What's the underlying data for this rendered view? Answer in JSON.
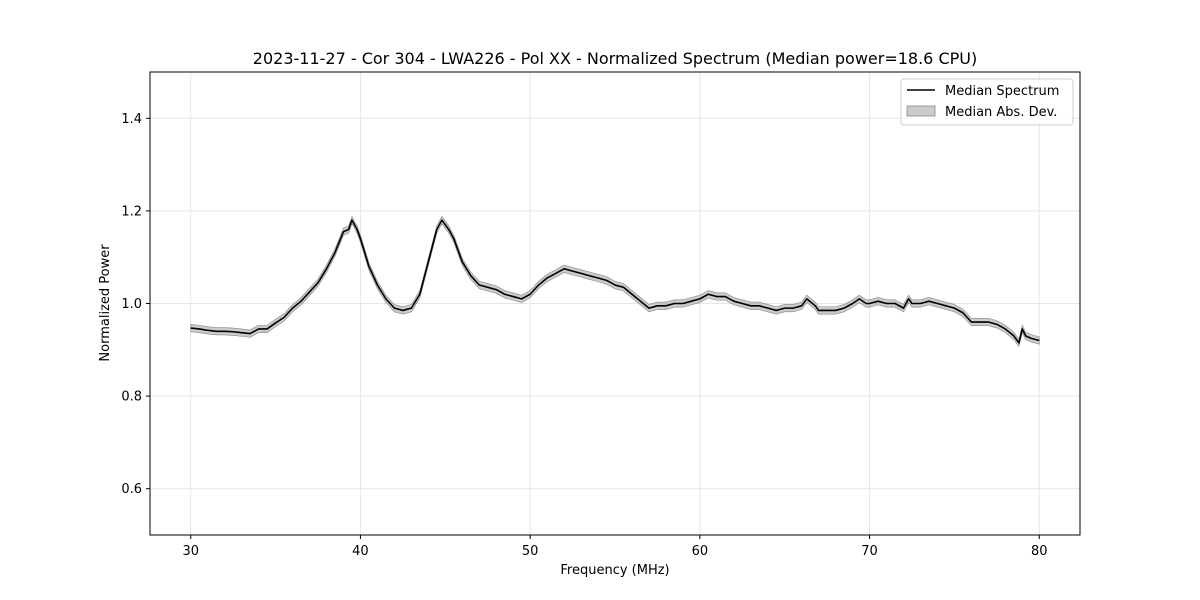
{
  "chart_data": {
    "type": "line",
    "title": "2023-11-27 - Cor 304 - LWA226 - Pol XX - Normalized Spectrum (Median power=18.6 CPU)",
    "xlabel": "Frequency (MHz)",
    "ylabel": "Normalized Power",
    "xlim": [
      27.6,
      82.4
    ],
    "ylim": [
      0.5,
      1.5
    ],
    "xticks": [
      30,
      40,
      50,
      60,
      70,
      80
    ],
    "yticks": [
      0.6,
      0.8,
      1.0,
      1.2,
      1.4
    ],
    "grid": true,
    "legend_position": "top-right",
    "colors": {
      "line": "#000000",
      "band": "#a0a0a0"
    },
    "series": [
      {
        "name": "Median Spectrum",
        "x": [
          30,
          30.5,
          31,
          31.5,
          32,
          32.5,
          33,
          33.5,
          34,
          34.5,
          35,
          35.5,
          36,
          36.5,
          37,
          37.5,
          38,
          38.5,
          39,
          39.3,
          39.5,
          39.8,
          40,
          40.5,
          41,
          41.5,
          42,
          42.5,
          43,
          43.5,
          44,
          44.5,
          44.8,
          45.2,
          45.5,
          46,
          46.5,
          47,
          47.5,
          48,
          48.5,
          49,
          49.5,
          50,
          50.5,
          51,
          51.5,
          52,
          52.5,
          53,
          53.5,
          54,
          54.5,
          55,
          55.5,
          56,
          56.5,
          57,
          57.5,
          58,
          58.5,
          59,
          59.5,
          60,
          60.5,
          61,
          61.5,
          62,
          62.5,
          63,
          63.5,
          64,
          64.5,
          65,
          65.5,
          66,
          66.3,
          66.8,
          67,
          67.5,
          68,
          68.5,
          69,
          69.4,
          69.8,
          70,
          70.5,
          71,
          71.5,
          72,
          72.3,
          72.5,
          73,
          73.5,
          74,
          74.5,
          75,
          75.5,
          76,
          76.5,
          77,
          77.5,
          78,
          78.5,
          78.8,
          79,
          79.2,
          79.5,
          80
        ],
        "y": [
          0.947,
          0.945,
          0.942,
          0.94,
          0.94,
          0.939,
          0.937,
          0.935,
          0.945,
          0.945,
          0.958,
          0.97,
          0.99,
          1.005,
          1.025,
          1.045,
          1.075,
          1.11,
          1.155,
          1.16,
          1.18,
          1.16,
          1.14,
          1.08,
          1.04,
          1.01,
          0.99,
          0.985,
          0.99,
          1.02,
          1.09,
          1.16,
          1.18,
          1.16,
          1.14,
          1.09,
          1.06,
          1.04,
          1.035,
          1.03,
          1.02,
          1.015,
          1.01,
          1.02,
          1.04,
          1.055,
          1.065,
          1.075,
          1.07,
          1.065,
          1.06,
          1.055,
          1.05,
          1.04,
          1.035,
          1.02,
          1.005,
          0.99,
          0.995,
          0.995,
          1.0,
          1.0,
          1.005,
          1.01,
          1.02,
          1.015,
          1.015,
          1.005,
          1.0,
          0.995,
          0.995,
          0.99,
          0.985,
          0.99,
          0.99,
          0.995,
          1.01,
          0.995,
          0.985,
          0.985,
          0.985,
          0.99,
          1.0,
          1.01,
          1.0,
          1.0,
          1.005,
          1.0,
          1.0,
          0.99,
          1.01,
          1.0,
          1.0,
          1.005,
          1.0,
          0.995,
          0.99,
          0.98,
          0.96,
          0.96,
          0.96,
          0.955,
          0.945,
          0.93,
          0.915,
          0.945,
          0.93,
          0.925,
          0.92
        ]
      },
      {
        "name": "Median Abs. Dev.",
        "dev": 0.008
      }
    ]
  }
}
